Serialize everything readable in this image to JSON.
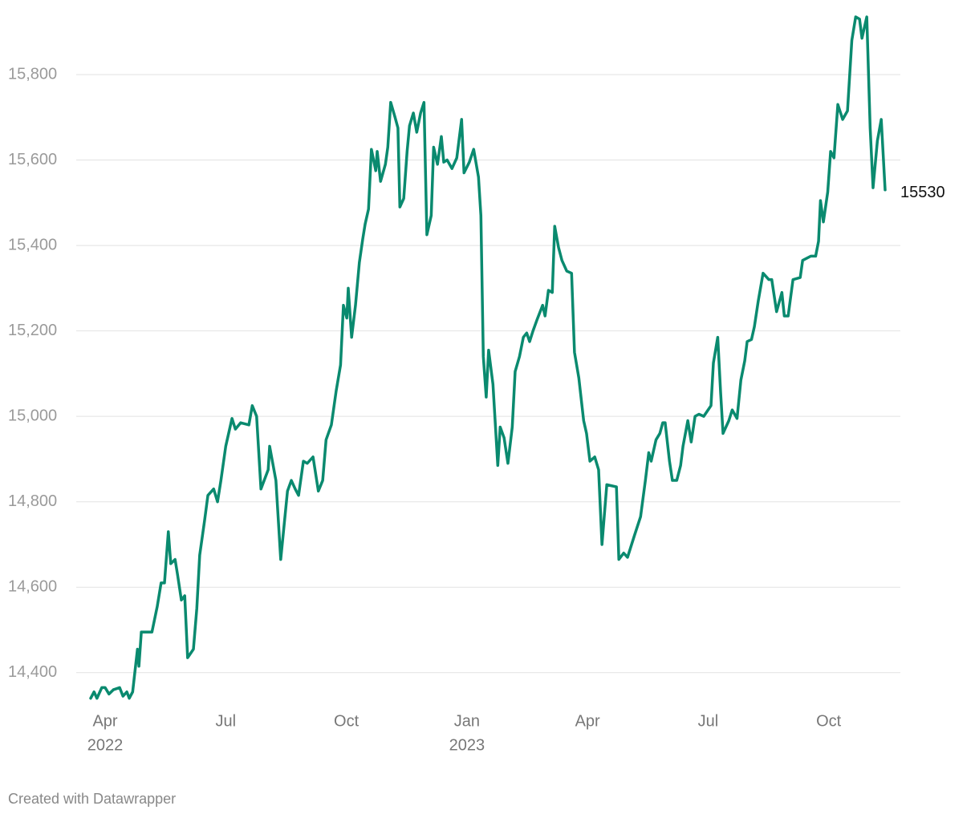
{
  "chart_data": {
    "type": "line",
    "footer": "Created with Datawrapper",
    "x": [
      2022.22,
      2022.227,
      2022.233,
      2022.243,
      2022.25,
      2022.258,
      2022.267,
      2022.28,
      2022.287,
      2022.295,
      2022.3,
      2022.307,
      2022.317,
      2022.32,
      2022.325,
      2022.347,
      2022.358,
      2022.366,
      2022.373,
      2022.381,
      2022.386,
      2022.395,
      2022.4,
      2022.408,
      2022.415,
      2022.421,
      2022.433,
      2022.44,
      2022.446,
      2022.456,
      2022.463,
      2022.475,
      2022.483,
      2022.49,
      2022.5,
      2022.513,
      2022.52,
      2022.531,
      2022.548,
      2022.555,
      2022.564,
      2022.573,
      2022.588,
      2022.591,
      2022.604,
      2022.614,
      2022.628,
      2022.636,
      2022.644,
      2022.651,
      2022.661,
      2022.669,
      2022.681,
      2022.692,
      2022.701,
      2022.708,
      2022.719,
      2022.729,
      2022.738,
      2022.744,
      2022.751,
      2022.754,
      2022.761,
      2022.769,
      2022.777,
      2022.784,
      2022.789,
      2022.796,
      2022.802,
      2022.811,
      2022.814,
      2022.821,
      2022.831,
      2022.836,
      2022.842,
      2022.851,
      2022.857,
      2022.861,
      2022.869,
      2022.876,
      2022.881,
      2022.889,
      2022.896,
      2022.904,
      2022.911,
      2022.917,
      2022.926,
      2022.931,
      2022.939,
      2022.947,
      2022.952,
      2022.959,
      2022.969,
      2022.979,
      2022.989,
      2022.994,
      2023.005,
      2023.014,
      2023.024,
      2023.029,
      2023.034,
      2023.04,
      2023.045,
      2023.054,
      2023.064,
      2023.069,
      2023.077,
      2023.085,
      2023.094,
      2023.1,
      2023.109,
      2023.117,
      2023.124,
      2023.13,
      2023.137,
      2023.145,
      2023.157,
      2023.162,
      2023.169,
      2023.177,
      2023.182,
      2023.19,
      2023.197,
      2023.207,
      2023.217,
      2023.223,
      2023.232,
      2023.242,
      2023.248,
      2023.255,
      2023.265,
      2023.273,
      2023.28,
      2023.29,
      2023.31,
      2023.315,
      2023.325,
      2023.333,
      2023.347,
      2023.36,
      2023.37,
      2023.377,
      2023.382,
      2023.392,
      2023.4,
      2023.406,
      2023.411,
      2023.42,
      2023.426,
      2023.435,
      2023.443,
      2023.448,
      2023.458,
      2023.465,
      2023.473,
      2023.481,
      2023.491,
      2023.5,
      2023.506,
      2023.511,
      2023.52,
      2023.526,
      2023.531,
      2023.543,
      2023.55,
      2023.56,
      2023.568,
      2023.576,
      2023.581,
      2023.59,
      2023.596,
      2023.604,
      2023.614,
      2023.626,
      2023.632,
      2023.642,
      2023.653,
      2023.658,
      2023.666,
      2023.676,
      2023.691,
      2023.696,
      2023.713,
      2023.723,
      2023.729,
      2023.733,
      2023.739,
      2023.748,
      2023.754,
      2023.761,
      2023.769,
      2023.779,
      2023.789,
      2023.798,
      2023.806,
      2023.814,
      2023.819,
      2023.829,
      2023.836,
      2023.842,
      2023.851,
      2023.859,
      2023.867
    ],
    "series": [
      {
        "color": "#0a8a6f",
        "values": [
          14340,
          14355,
          14340,
          14365,
          14365,
          14350,
          14360,
          14365,
          14345,
          14355,
          14340,
          14355,
          14455,
          14415,
          14495,
          14495,
          14555,
          14610,
          14610,
          14730,
          14655,
          14665,
          14630,
          14570,
          14580,
          14435,
          14455,
          14550,
          14675,
          14755,
          14815,
          14830,
          14800,
          14850,
          14930,
          14995,
          14970,
          14985,
          14980,
          15025,
          15000,
          14830,
          14875,
          14930,
          14850,
          14665,
          14825,
          14850,
          14830,
          14815,
          14895,
          14890,
          14905,
          14825,
          14850,
          14945,
          14980,
          15060,
          15120,
          15260,
          15230,
          15300,
          15185,
          15260,
          15360,
          15415,
          15450,
          15485,
          15625,
          15575,
          15620,
          15550,
          15590,
          15630,
          15735,
          15700,
          15675,
          15490,
          15510,
          15620,
          15680,
          15710,
          15665,
          15710,
          15735,
          15425,
          15470,
          15630,
          15590,
          15655,
          15595,
          15600,
          15580,
          15605,
          15695,
          15570,
          15595,
          15625,
          15560,
          15470,
          15140,
          15045,
          15155,
          15075,
          14885,
          14975,
          14950,
          14890,
          14975,
          15105,
          15140,
          15185,
          15195,
          15175,
          15200,
          15225,
          15260,
          15235,
          15295,
          15290,
          15445,
          15395,
          15365,
          15340,
          15335,
          15150,
          15090,
          14990,
          14960,
          14895,
          14905,
          14875,
          14700,
          14840,
          14835,
          14665,
          14680,
          14670,
          14720,
          14765,
          14850,
          14915,
          14895,
          14945,
          14960,
          14985,
          14985,
          14895,
          14850,
          14850,
          14885,
          14930,
          14990,
          14940,
          15000,
          15005,
          15000,
          15015,
          15025,
          15125,
          15185,
          15055,
          14960,
          14990,
          15015,
          14995,
          15085,
          15130,
          15175,
          15180,
          15210,
          15270,
          15335,
          15320,
          15320,
          15245,
          15290,
          15235,
          15235,
          15320,
          15325,
          15365,
          15375,
          15375,
          15410,
          15505,
          15455,
          15525,
          15620,
          15605,
          15730,
          15695,
          15715,
          15880,
          15935,
          15930,
          15885,
          15935,
          15675,
          15535,
          15645,
          15695,
          15530
        ]
      }
    ],
    "xlim": [
      2022.22,
      2023.867
    ],
    "xticks": [
      {
        "value": 2022.25,
        "label": "Apr",
        "year": "2022"
      },
      {
        "value": 2022.5,
        "label": "Jul"
      },
      {
        "value": 2022.75,
        "label": "Oct"
      },
      {
        "value": 2023.0,
        "label": "Jan",
        "year": "2023"
      },
      {
        "value": 2023.25,
        "label": "Apr"
      },
      {
        "value": 2023.5,
        "label": "Jul"
      },
      {
        "value": 2023.75,
        "label": "Oct"
      }
    ],
    "ylim": [
      14332,
      15937
    ],
    "yticks": [
      {
        "value": 14400,
        "label": "14,400"
      },
      {
        "value": 14600,
        "label": "14,600"
      },
      {
        "value": 14800,
        "label": "14,800"
      },
      {
        "value": 15000,
        "label": "15,000"
      },
      {
        "value": 15200,
        "label": "15,200"
      },
      {
        "value": 15400,
        "label": "15,400"
      },
      {
        "value": 15600,
        "label": "15,600"
      },
      {
        "value": 15800,
        "label": "15,800"
      }
    ],
    "grid": true
  }
}
